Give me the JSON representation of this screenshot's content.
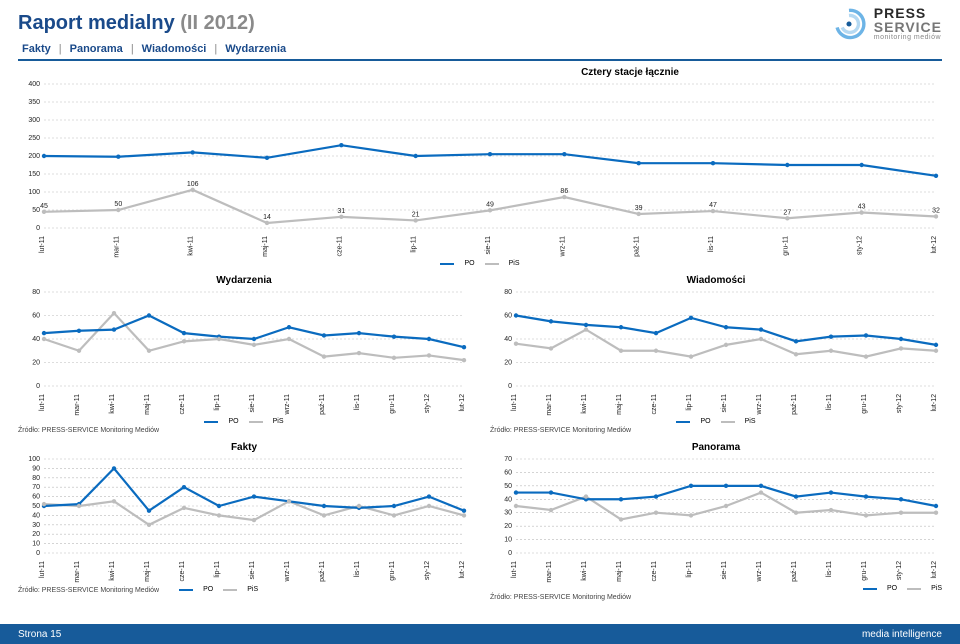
{
  "header": {
    "title_main": "Raport medialny",
    "title_sub": "(II 2012)",
    "logo_line1": "PRESS",
    "logo_line2": "SERVICE",
    "logo_line3": "monitoring mediów"
  },
  "nav": {
    "items": [
      "Fakty",
      "Panorama",
      "Wiadomości",
      "Wydarzenia"
    ],
    "sep": "|"
  },
  "months": [
    "lut-11",
    "mar-11",
    "kwi-11",
    "maj-11",
    "cze-11",
    "lip-11",
    "sie-11",
    "wrz-11",
    "paź-11",
    "lis-11",
    "gru-11",
    "sty-12",
    "lut-12"
  ],
  "colors": {
    "po": "#0a6bbf",
    "pis": "#bdbdbd",
    "bg": "#ffffff",
    "grid": "#bbbbbb",
    "title": "#1a4a8a",
    "footer_bg": "#175b9a"
  },
  "legend": {
    "po": "PO",
    "pis": "PiS"
  },
  "main_chart": {
    "title": "Cztery stacje łącznie",
    "type": "line",
    "ylim": [
      0,
      400
    ],
    "ytick_step": 50,
    "po": [
      200,
      198,
      210,
      195,
      230,
      200,
      205,
      205,
      180,
      180,
      175,
      175,
      145
    ],
    "pis": [
      45,
      50,
      106,
      14,
      31,
      21,
      49,
      86,
      39,
      47,
      27,
      43,
      32
    ],
    "labels_pis": [
      "45",
      "50",
      "106",
      "14",
      "31",
      "21",
      "49",
      "86",
      "39",
      "47",
      "27",
      "43",
      "32"
    ]
  },
  "small_charts": [
    {
      "key": "wydarzenia",
      "title": "Wydarzenia",
      "ylim": [
        0,
        80
      ],
      "ytick_step": 20,
      "po": [
        45,
        47,
        48,
        60,
        45,
        42,
        40,
        50,
        43,
        45,
        42,
        40,
        33
      ],
      "pis": [
        40,
        30,
        62,
        30,
        38,
        40,
        35,
        40,
        25,
        28,
        24,
        26,
        22
      ],
      "source": "Źródło: PRESS-SERVICE Monitoring Mediów"
    },
    {
      "key": "wiadomosci",
      "title": "Wiadomości",
      "ylim": [
        0,
        80
      ],
      "ytick_step": 20,
      "po": [
        60,
        55,
        52,
        50,
        45,
        58,
        50,
        48,
        38,
        42,
        43,
        40,
        35
      ],
      "pis": [
        36,
        32,
        48,
        30,
        30,
        25,
        35,
        40,
        27,
        30,
        25,
        32,
        30
      ],
      "source": "Źródło: PRESS-SERVICE Monitoring Mediów"
    },
    {
      "key": "fakty",
      "title": "Fakty",
      "ylim": [
        0,
        100
      ],
      "ytick_step": 10,
      "po": [
        50,
        52,
        90,
        45,
        70,
        50,
        60,
        55,
        50,
        48,
        50,
        60,
        45
      ],
      "pis": [
        52,
        50,
        55,
        30,
        48,
        40,
        35,
        55,
        40,
        50,
        40,
        50,
        40
      ],
      "source": "Źródło: PRESS-SERVICE Monitoring Mediów"
    },
    {
      "key": "panorama",
      "title": "Panorama",
      "ylim": [
        0,
        70
      ],
      "ytick_step": 10,
      "po": [
        45,
        45,
        40,
        40,
        42,
        50,
        50,
        50,
        42,
        45,
        42,
        40,
        35
      ],
      "pis": [
        35,
        32,
        42,
        25,
        30,
        28,
        35,
        45,
        30,
        32,
        28,
        30,
        30
      ],
      "source": "Źródło: PRESS-SERVICE Monitoring Mediów"
    }
  ],
  "footer": {
    "left": "Strona 15",
    "right": "media intelligence"
  }
}
